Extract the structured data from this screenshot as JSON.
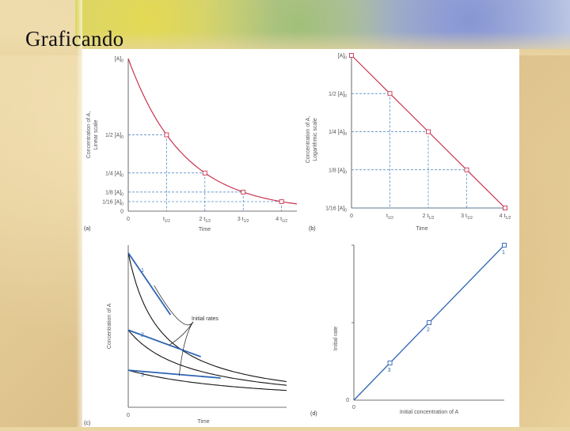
{
  "slide": {
    "title": "Graficando"
  },
  "colors": {
    "curve_red": "#c8334e",
    "guide_blue": "#3d7fc0",
    "curve_blue": "#2e64b3",
    "curve_black": "#151515",
    "axis": "#444444",
    "label": "#555555"
  },
  "chart_data": [
    {
      "panel": "(a)",
      "type": "line",
      "xlabel": "Time",
      "ylabel_lines": [
        "Concentration of A,",
        "Linear scale"
      ],
      "x_ticks": [
        {
          "x": 0,
          "base": "0",
          "sub": ""
        },
        {
          "x": 1,
          "base": "t",
          "sub": "1/2"
        },
        {
          "x": 2,
          "base": "2 t",
          "sub": "1/2"
        },
        {
          "x": 3,
          "base": "3 t",
          "sub": "1/2"
        },
        {
          "x": 4,
          "base": "4 t",
          "sub": "1/2"
        }
      ],
      "y_ticks": [
        {
          "y": 1,
          "base": "[A]",
          "sub": "0"
        },
        {
          "y": 0.5,
          "base": "1/2 [A]",
          "sub": "0"
        },
        {
          "y": 0.25,
          "base": "1/4 [A]",
          "sub": "0"
        },
        {
          "y": 0.125,
          "base": "1/8 [A]",
          "sub": "0"
        },
        {
          "y": 0.0625,
          "base": "1/16 [A]",
          "sub": "0"
        },
        {
          "y": 0,
          "base": "0",
          "sub": ""
        }
      ],
      "points": [
        [
          1,
          0.5
        ],
        [
          2,
          0.25
        ],
        [
          3,
          0.125
        ],
        [
          4,
          0.0625
        ]
      ],
      "curve": "exponential decay",
      "xlim": [
        0,
        4.4
      ],
      "ylim": [
        0,
        1
      ]
    },
    {
      "panel": "(b)",
      "type": "line",
      "xlabel": "Time",
      "ylabel_lines": [
        "Concentration of A,",
        "Logarithmic scale"
      ],
      "x_ticks": [
        {
          "x": 0,
          "base": "0",
          "sub": ""
        },
        {
          "x": 1,
          "base": "t",
          "sub": "1/2"
        },
        {
          "x": 2,
          "base": "2 t",
          "sub": "1/2"
        },
        {
          "x": 3,
          "base": "3 t",
          "sub": "1/2"
        },
        {
          "x": 4,
          "base": "4 t",
          "sub": "1/2"
        }
      ],
      "y_ticks": [
        {
          "y": 0,
          "base": "[A]",
          "sub": "0"
        },
        {
          "y": 1,
          "base": "1/2 [A]",
          "sub": "0"
        },
        {
          "y": 2,
          "base": "1/4 [A]",
          "sub": "0"
        },
        {
          "y": 3,
          "base": "1/8 [A]",
          "sub": "0"
        },
        {
          "y": 4,
          "base": "1/16 [A]",
          "sub": "0"
        }
      ],
      "points": [
        [
          0,
          0
        ],
        [
          1,
          1
        ],
        [
          2,
          2
        ],
        [
          3,
          3
        ],
        [
          4,
          4
        ]
      ],
      "xlim": [
        0,
        4
      ],
      "ylim_halvings": [
        0,
        4
      ]
    },
    {
      "panel": "(c)",
      "type": "line",
      "xlabel": "Time",
      "ylabel": "Concentration of A",
      "origin_label": "0",
      "annotation": "Initial rates",
      "series": [
        {
          "name": "1",
          "c0": 1.0,
          "tangent_dt": 0.32
        },
        {
          "name": "2",
          "c0": 0.5,
          "tangent_dt": 0.55
        },
        {
          "name": "3",
          "c0": 0.24,
          "tangent_dt": 0.7
        }
      ],
      "xlim": [
        0,
        1.2
      ],
      "ylim": [
        0,
        1.05
      ]
    },
    {
      "panel": "(d)",
      "type": "line",
      "xlabel": "Initial concentration of A",
      "ylabel": "Initial rate",
      "x_origin_label": "0",
      "y_origin_label": "0",
      "points": [
        {
          "label": "3",
          "x": 0.24,
          "y": 0.24
        },
        {
          "label": "2",
          "x": 0.5,
          "y": 0.5
        },
        {
          "label": "1",
          "x": 1.0,
          "y": 1.0
        }
      ],
      "xlim": [
        0,
        1
      ],
      "ylim": [
        0,
        1
      ]
    }
  ]
}
